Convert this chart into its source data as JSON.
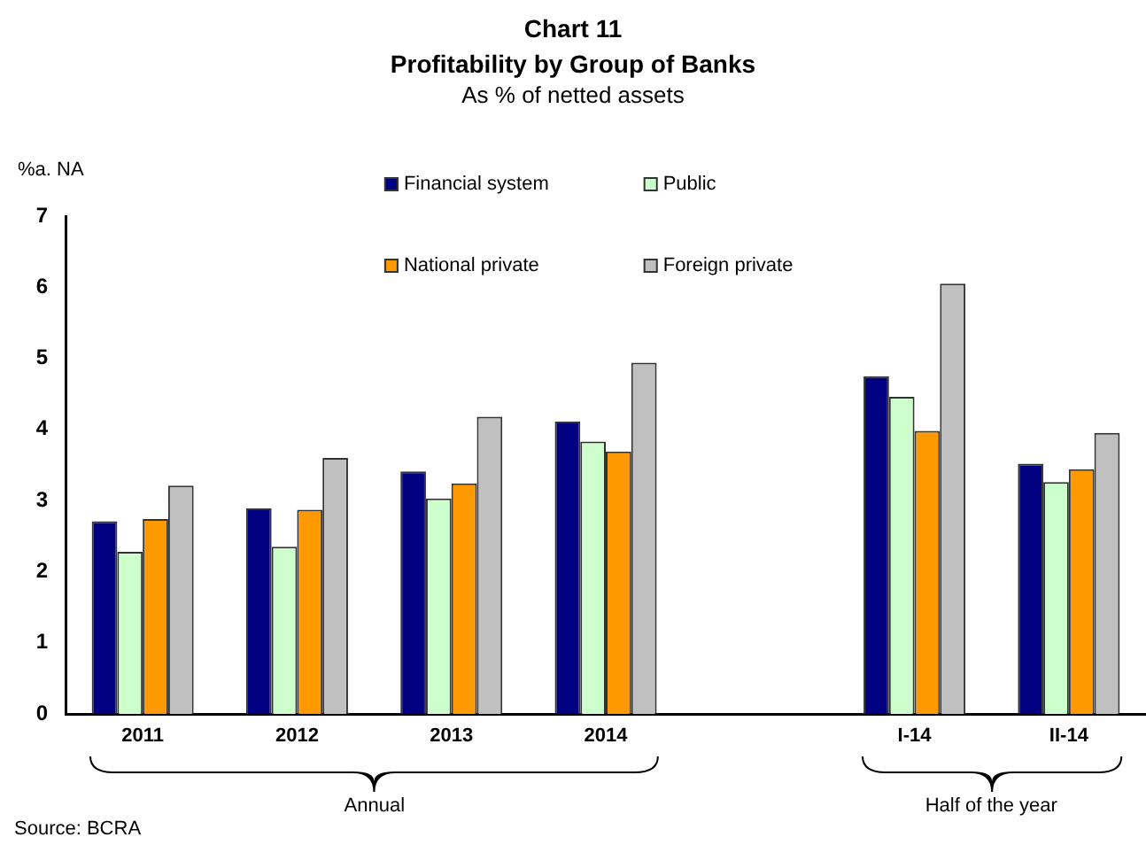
{
  "chart_data": {
    "type": "bar",
    "title": "Chart 11\nProfitability by Group of Banks",
    "subtitle": "As % of netted assets",
    "ylabel": "%a. NA",
    "categories": [
      "2011",
      "2012",
      "2013",
      "2014",
      null,
      "I-14",
      "II-14"
    ],
    "series": [
      {
        "name": "Financial system",
        "color": "#000080",
        "values": [
          2.71,
          2.89,
          3.41,
          4.11,
          null,
          4.75,
          3.52
        ]
      },
      {
        "name": "Public",
        "color": "#ccffcc",
        "values": [
          2.28,
          2.35,
          3.03,
          3.83,
          null,
          4.46,
          3.26
        ]
      },
      {
        "name": "National private",
        "color": "#ff9900",
        "values": [
          2.74,
          2.87,
          3.24,
          3.69,
          null,
          3.98,
          3.44
        ]
      },
      {
        "name": "Foreign private",
        "color": "#c0c0c0",
        "values": [
          3.21,
          3.6,
          4.18,
          4.94,
          null,
          6.05,
          3.95
        ]
      }
    ],
    "ylim": [
      0,
      7
    ],
    "yticks": [
      0,
      1,
      2,
      3,
      4,
      5,
      6,
      7
    ],
    "grid": false,
    "legend": "top",
    "annotations": [
      "Annual",
      "Half of the year",
      "Source: BCRA"
    ]
  }
}
